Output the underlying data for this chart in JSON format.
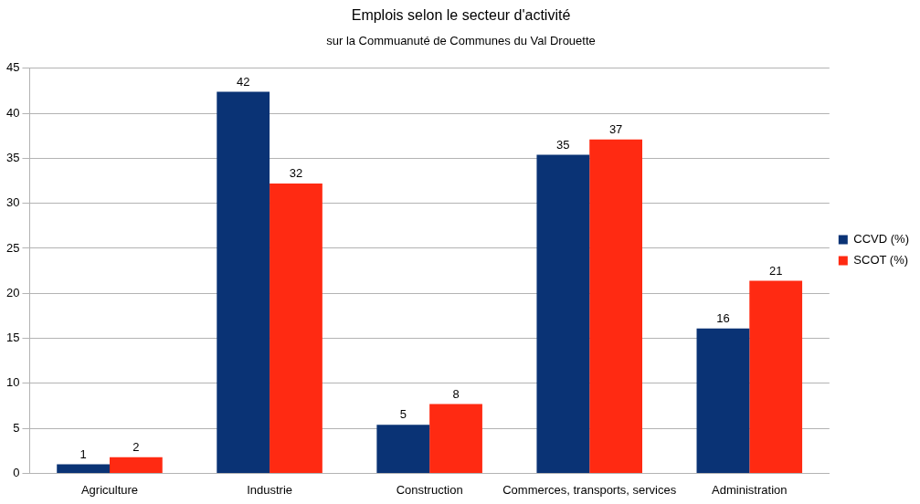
{
  "chart_data": {
    "type": "bar",
    "title": "Emplois selon le secteur d'activité",
    "subtitle": "sur la Commuanuté de Communes du Val Drouette",
    "categories": [
      "Agriculture",
      "Industrie",
      "Construction",
      "Commerces, transports, services",
      "Administration"
    ],
    "series": [
      {
        "name": "CCVD (%)",
        "color": "#0a3375",
        "values": [
          1.0,
          42.4,
          5.4,
          35.4,
          16.1
        ],
        "value_labels": [
          "1",
          "42",
          "5",
          "35",
          "16"
        ]
      },
      {
        "name": "SCOT (%)",
        "color": "#ff2a12",
        "values": [
          1.8,
          32.2,
          7.7,
          37.1,
          21.4
        ],
        "value_labels": [
          "2",
          "32",
          "8",
          "37",
          "21"
        ]
      }
    ],
    "ylim": [
      0,
      45
    ],
    "yticks": [
      0,
      5,
      10,
      15,
      20,
      25,
      30,
      35,
      40,
      45
    ],
    "grid": "y",
    "legend": "right"
  }
}
